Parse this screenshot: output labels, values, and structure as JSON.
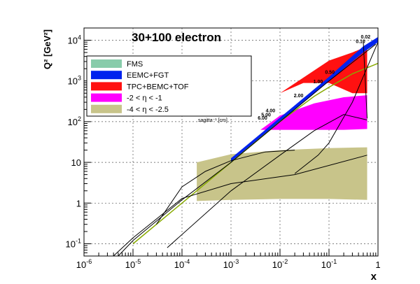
{
  "chart_data": {
    "type": "area",
    "title": "30+100 electron",
    "xlabel": "x",
    "ylabel": "Q² [GeV²]",
    "x_scale": "log",
    "y_scale": "log",
    "xlim": [
      1e-06,
      1
    ],
    "ylim": [
      0.05,
      20000
    ],
    "grid": true,
    "x_ticks": [
      {
        "v": 1e-06,
        "base": "10",
        "exp": "-6"
      },
      {
        "v": 1e-05,
        "base": "10",
        "exp": "-5"
      },
      {
        "v": 0.0001,
        "base": "10",
        "exp": "-4"
      },
      {
        "v": 0.001,
        "base": "10",
        "exp": "-3"
      },
      {
        "v": 0.01,
        "base": "10",
        "exp": "-2"
      },
      {
        "v": 0.1,
        "base": "10",
        "exp": "-1"
      },
      {
        "v": 1,
        "base": "1",
        "exp": ""
      }
    ],
    "y_ticks": [
      {
        "v": 0.1,
        "base": "10",
        "exp": "-1"
      },
      {
        "v": 1,
        "base": "1",
        "exp": ""
      },
      {
        "v": 10,
        "base": "10",
        "exp": ""
      },
      {
        "v": 100,
        "base": "10",
        "exp": "2"
      },
      {
        "v": 1000,
        "base": "10",
        "exp": "3"
      },
      {
        "v": 10000,
        "base": "10",
        "exp": "4"
      }
    ],
    "legend_position": "top-left",
    "legend": [
      {
        "label": "FMS",
        "color": "#88ccaa"
      },
      {
        "label": "EEMC+FGT",
        "color": "#0022ee"
      },
      {
        "label": "TPC+BEMC+TOF",
        "color": "#ff1111"
      },
      {
        "label": "-2 < η < -1",
        "color": "#ff00ff"
      },
      {
        "label": "-4 < η < -2.5",
        "color": "#c8c48a"
      }
    ],
    "series": [
      {
        "name": "-4 < η < -2.5",
        "color": "#c8c48a",
        "upper": [
          [
            0.0002,
            10
          ],
          [
            0.001,
            15.8
          ],
          [
            0.01,
            20
          ],
          [
            0.1,
            22.4
          ],
          [
            0.6,
            23.4
          ]
        ],
        "lower": [
          [
            0.0002,
            1.12
          ],
          [
            0.001,
            1.2
          ],
          [
            0.01,
            1.26
          ],
          [
            0.1,
            1.26
          ],
          [
            0.6,
            1.2
          ]
        ]
      },
      {
        "name": "-2 < η < -1",
        "color": "#ff00ff",
        "upper": [
          [
            0.004,
            63
          ],
          [
            0.01,
            141
          ],
          [
            0.05,
            282
          ],
          [
            0.2,
            398
          ],
          [
            0.6,
            447
          ]
        ],
        "lower": [
          [
            0.004,
            63
          ],
          [
            0.01,
            63
          ],
          [
            0.05,
            63
          ],
          [
            0.2,
            63
          ],
          [
            0.6,
            66
          ]
        ]
      },
      {
        "name": "TPC+BEMC+TOF",
        "color": "#ff1111",
        "upper": [
          [
            0.01,
            501
          ],
          [
            0.1,
            3162
          ],
          [
            0.3,
            5012
          ],
          [
            0.6,
            7079
          ]
        ],
        "lower": [
          [
            0.01,
            501
          ],
          [
            0.03,
            891
          ],
          [
            0.1,
            891
          ],
          [
            0.3,
            501
          ],
          [
            0.6,
            501
          ]
        ]
      },
      {
        "name": "EEMC+FGT",
        "color": "#0022ee",
        "upper": [
          [
            0.001,
            12.6
          ],
          [
            0.01,
            126
          ],
          [
            0.1,
            1259
          ],
          [
            0.5,
            7079
          ],
          [
            1,
            12000
          ]
        ],
        "lower": [
          [
            0.001,
            10
          ],
          [
            0.01,
            100
          ],
          [
            0.1,
            1000
          ],
          [
            0.5,
            5012
          ],
          [
            1,
            9000
          ]
        ]
      }
    ],
    "black_lines": [
      [
        [
          4e-06,
          0.05
        ],
        [
          1e-05,
          0.14
        ],
        [
          0.0001,
          1.3
        ],
        [
          0.001,
          3
        ],
        [
          0.02,
          5
        ],
        [
          0.6,
          15
        ]
      ],
      [
        [
          5e-06,
          0.05
        ],
        [
          1e-05,
          0.12
        ],
        [
          0.0001,
          1.2
        ],
        [
          0.001,
          10
        ],
        [
          0.01,
          100
        ],
        [
          0.1,
          1000
        ],
        [
          0.9,
          8000
        ]
      ],
      [
        [
          3e-05,
          0.3
        ],
        [
          0.0001,
          2.5
        ],
        [
          0.0003,
          6
        ],
        [
          0.001,
          11
        ],
        [
          0.005,
          18
        ],
        [
          0.02,
          20
        ]
      ],
      [
        [
          5e-05,
          0.08
        ],
        [
          0.001,
          2
        ],
        [
          0.01,
          15
        ],
        [
          0.05,
          60
        ],
        [
          0.2,
          150
        ],
        [
          0.6,
          110
        ]
      ],
      [
        [
          0.02,
          5.3
        ],
        [
          0.06,
          15
        ],
        [
          0.1,
          30
        ],
        [
          0.3,
          300
        ],
        [
          1,
          9000
        ]
      ],
      [
        [
          0.5,
          10000
        ],
        [
          0.6,
          120
        ]
      ]
    ],
    "green_line": [
      [
        1e-05,
        0.1
      ],
      [
        0.0001,
        1
      ],
      [
        0.001,
        10
      ],
      [
        0.01,
        100
      ],
      [
        0.05,
        420
      ],
      [
        0.1,
        700
      ],
      [
        0.3,
        1500
      ],
      [
        1,
        2700
      ]
    ],
    "sagitta_label": "sagitta⁻¹ [cm]",
    "annotations": [
      {
        "text": "0.02",
        "x": 0.7,
        "y": 11000
      },
      {
        "text": "0.10",
        "x": 0.55,
        "y": 8500
      },
      {
        "text": "0.50",
        "x": 0.13,
        "y": 1500
      },
      {
        "text": "1.00",
        "x": 0.075,
        "y": 880
      },
      {
        "text": "2.00",
        "x": 0.03,
        "y": 400
      },
      {
        "text": "4.00",
        "x": 0.008,
        "y": 170
      },
      {
        "text": "5.00",
        "x": 0.0065,
        "y": 135
      },
      {
        "text": "6.00",
        "x": 0.0055,
        "y": 112
      }
    ]
  }
}
